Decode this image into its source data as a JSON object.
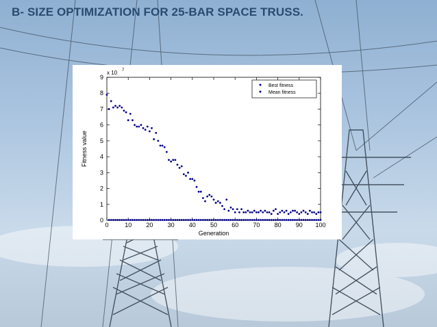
{
  "slide": {
    "title": "B- SIZE OPTIMIZATION FOR 25-BAR SPACE TRUSS."
  },
  "colors": {
    "title": "#2a4b6d",
    "marker": "#000088",
    "sky_top": "#8fb0d2",
    "sky_bottom": "#c9daea"
  },
  "chart_data": {
    "type": "scatter",
    "xlabel": "Generation",
    "ylabel": "Fitness value",
    "y_multiplier_label": "x 10",
    "y_multiplier_exponent": "7",
    "xlim": [
      0,
      100
    ],
    "ylim": [
      0,
      9
    ],
    "x_ticks": [
      0,
      10,
      20,
      30,
      40,
      50,
      60,
      70,
      80,
      90,
      100
    ],
    "y_ticks": [
      0,
      1,
      2,
      3,
      4,
      5,
      6,
      7,
      8,
      9
    ],
    "grid": false,
    "legend_position": "top-right",
    "series": [
      {
        "name": "Best fitness",
        "marker": "dot",
        "x": [
          0,
          1,
          2,
          3,
          4,
          5,
          6,
          7,
          8,
          9,
          10,
          11,
          12,
          13,
          14,
          15,
          16,
          17,
          18,
          19,
          20,
          21,
          22,
          23,
          24,
          25,
          26,
          27,
          28,
          29,
          30,
          31,
          32,
          33,
          34,
          35,
          36,
          37,
          38,
          39,
          40,
          41,
          42,
          43,
          44,
          45,
          46,
          47,
          48,
          49,
          50,
          51,
          52,
          53,
          54,
          55,
          56,
          57,
          58,
          59,
          60,
          61,
          62,
          63,
          64,
          65,
          66,
          67,
          68,
          69,
          70,
          71,
          72,
          73,
          74,
          75,
          76,
          77,
          78,
          79,
          80,
          81,
          82,
          83,
          84,
          85,
          86,
          87,
          88,
          89,
          90,
          91,
          92,
          93,
          94,
          95,
          96,
          97,
          98,
          99,
          100
        ],
        "y": [
          7.9,
          0.02,
          0.02,
          0.02,
          0.02,
          0.02,
          0.02,
          0.02,
          0.02,
          0.02,
          0.02,
          0.02,
          0.02,
          0.02,
          0.02,
          0.02,
          0.02,
          0.02,
          0.02,
          0.02,
          0.02,
          0.02,
          0.02,
          0.02,
          0.02,
          0.02,
          0.02,
          0.02,
          0.02,
          0.02,
          0.02,
          0.02,
          0.02,
          0.02,
          0.02,
          0.02,
          0.02,
          0.02,
          0.02,
          0.02,
          0.02,
          0.02,
          0.02,
          0.02,
          0.02,
          0.02,
          0.02,
          0.02,
          0.02,
          0.02,
          0.02,
          0.02,
          0.02,
          0.02,
          0.02,
          0.02,
          0.02,
          0.02,
          0.02,
          0.02,
          0.02,
          0.02,
          0.02,
          0.02,
          0.02,
          0.02,
          0.02,
          0.02,
          0.02,
          0.02,
          0.02,
          0.02,
          0.02,
          0.02,
          0.02,
          0.02,
          0.02,
          0.02,
          0.02,
          0.02,
          0.02,
          0.02,
          0.02,
          0.02,
          0.02,
          0.02,
          0.02,
          0.02,
          0.02,
          0.02,
          0.02,
          0.02,
          0.02,
          0.02,
          0.02,
          0.02,
          0.02,
          0.02,
          0.02,
          0.02,
          0.02
        ]
      },
      {
        "name": "Mean fitness",
        "marker": "dot",
        "x": [
          1,
          2,
          3,
          4,
          5,
          6,
          7,
          8,
          9,
          10,
          11,
          12,
          13,
          14,
          15,
          16,
          17,
          18,
          19,
          20,
          21,
          22,
          23,
          24,
          25,
          26,
          27,
          28,
          29,
          30,
          31,
          32,
          33,
          34,
          35,
          36,
          37,
          38,
          39,
          40,
          41,
          42,
          43,
          44,
          45,
          46,
          47,
          48,
          49,
          50,
          51,
          52,
          53,
          54,
          55,
          56,
          57,
          58,
          59,
          60,
          61,
          62,
          63,
          64,
          65,
          66,
          67,
          68,
          69,
          70,
          71,
          72,
          73,
          74,
          75,
          76,
          77,
          78,
          79,
          80,
          81,
          82,
          83,
          84,
          85,
          86,
          87,
          88,
          89,
          90,
          91,
          92,
          93,
          94,
          95,
          96,
          97,
          98,
          99,
          100
        ],
        "y": [
          7.0,
          7.5,
          7.1,
          7.2,
          7.1,
          7.2,
          7.1,
          6.9,
          6.8,
          6.3,
          6.7,
          6.3,
          6.0,
          5.9,
          5.9,
          6.0,
          5.8,
          5.7,
          5.9,
          5.6,
          5.8,
          5.1,
          5.5,
          5.0,
          4.7,
          4.7,
          4.6,
          4.3,
          3.8,
          3.7,
          3.8,
          3.8,
          3.5,
          3.3,
          3.4,
          2.9,
          2.8,
          3.0,
          2.6,
          2.6,
          2.5,
          2.1,
          1.8,
          1.8,
          1.4,
          1.2,
          1.5,
          1.6,
          1.5,
          1.3,
          1.1,
          1.2,
          1.1,
          0.9,
          0.7,
          1.3,
          0.6,
          0.8,
          0.7,
          0.5,
          0.7,
          0.5,
          0.7,
          0.5,
          0.5,
          0.6,
          0.5,
          0.5,
          0.6,
          0.5,
          0.5,
          0.6,
          0.5,
          0.6,
          0.5,
          0.5,
          0.4,
          0.6,
          0.7,
          0.4,
          0.5,
          0.6,
          0.5,
          0.6,
          0.4,
          0.5,
          0.6,
          0.6,
          0.5,
          0.4,
          0.5,
          0.6,
          0.5,
          0.4,
          0.6,
          0.5,
          0.5,
          0.4,
          0.5,
          0.5
        ]
      }
    ]
  }
}
